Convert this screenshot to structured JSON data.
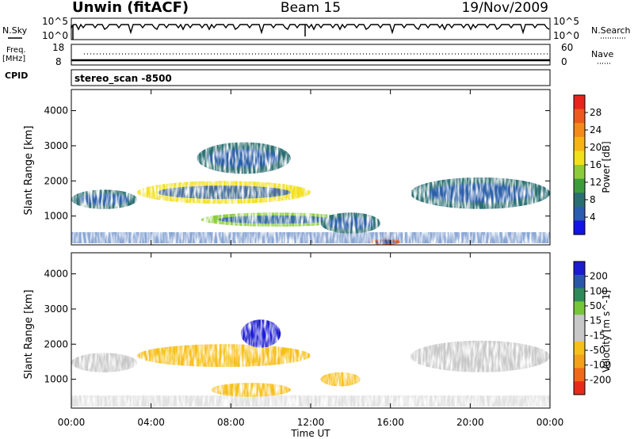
{
  "header": {
    "station": "Unwin (fitACF)",
    "beam": "Beam 15",
    "date": "19/Nov/2009"
  },
  "side_labels": {
    "nsky": "N.Sky",
    "freq_top": "Freq.",
    "freq_unit": "[MHz]",
    "cpid": "CPID",
    "nsearch": "N.Search",
    "nave": "Nave"
  },
  "cpid_value": "stereo_scan -8500",
  "noise_axis": {
    "ticks": [
      "10^5",
      "10^0"
    ]
  },
  "freq_axis": {
    "ticks_left": [
      "18",
      "8"
    ],
    "ticks_right": [
      "60",
      "0"
    ]
  },
  "x_axis": {
    "label": "Time UT",
    "ticks": [
      "00:00",
      "04:00",
      "08:00",
      "12:00",
      "16:00",
      "20:00",
      "00:00"
    ]
  },
  "power_panel": {
    "ylabel": "Slant Range [km]",
    "yticks": [
      "4000",
      "3000",
      "2000",
      "1000"
    ],
    "cbar_label": "Power [dB]",
    "cbar_ticks": [
      "28",
      "24",
      "20",
      "16",
      "12",
      "8",
      "4"
    ],
    "cbar_colors": [
      "#e8241d",
      "#ec5a1c",
      "#f28a1c",
      "#f6b416",
      "#f2e01a",
      "#8ccc3a",
      "#3c9c3c",
      "#2a6e72",
      "#2a5cb0",
      "#1414e6"
    ]
  },
  "velocity_panel": {
    "ylabel": "Slant Range [km]",
    "yticks": [
      "4000",
      "3000",
      "2000",
      "1000"
    ],
    "cbar_label": "Velocity [m s^-1]",
    "cbar_ticks": [
      "200",
      "100",
      "50",
      "15",
      "-15",
      "-50",
      "-100",
      "-200"
    ],
    "cbar_colors": [
      "#1c1cd0",
      "#2a58a8",
      "#2e8a5a",
      "#76c63a",
      "#c8c8c8",
      "#c8c8c8",
      "#f6c01a",
      "#f4a01a",
      "#f06a1a",
      "#e82a1a"
    ]
  },
  "chart_data": [
    {
      "type": "heatmap",
      "title": "Power [dB]",
      "xlabel": "Time UT",
      "ylabel": "Slant Range [km]",
      "xlim": [
        0,
        24
      ],
      "ylim": [
        180,
        4600
      ],
      "colorbar": {
        "label": "Power [dB]",
        "range": [
          0,
          30
        ]
      },
      "echo_regions": [
        {
          "t0": 0.0,
          "t1": 3.3,
          "r0": 1200,
          "r1": 1750,
          "value": 6
        },
        {
          "t0": 3.3,
          "t1": 12.0,
          "r0": 1350,
          "r1": 2000,
          "value": 16
        },
        {
          "t0": 6.3,
          "t1": 11.0,
          "r0": 2200,
          "r1": 3100,
          "value": 6
        },
        {
          "t0": 6.5,
          "t1": 14.0,
          "r0": 700,
          "r1": 1100,
          "value": 14
        },
        {
          "t0": 12.5,
          "t1": 15.5,
          "r0": 500,
          "r1": 1100,
          "value": 6
        },
        {
          "t0": 15.0,
          "t1": 16.5,
          "r0": 180,
          "r1": 350,
          "value": 28
        },
        {
          "t0": 17.0,
          "t1": 24.0,
          "r0": 1200,
          "r1": 2100,
          "value": 6
        }
      ]
    },
    {
      "type": "heatmap",
      "title": "Velocity [m s^-1]",
      "xlabel": "Time UT",
      "ylabel": "Slant Range [km]",
      "xlim": [
        0,
        24
      ],
      "ylim": [
        180,
        4600
      ],
      "colorbar": {
        "label": "Velocity [m s^-1]",
        "range": [
          -200,
          200
        ]
      },
      "echo_regions": [
        {
          "t0": 0.0,
          "t1": 3.3,
          "r0": 1200,
          "r1": 1750,
          "value": 0
        },
        {
          "t0": 3.3,
          "t1": 12.0,
          "r0": 1350,
          "r1": 2000,
          "value": -50
        },
        {
          "t0": 8.5,
          "t1": 10.5,
          "r0": 1900,
          "r1": 2700,
          "value": 200
        },
        {
          "t0": 7.0,
          "t1": 11.0,
          "r0": 500,
          "r1": 900,
          "value": -80
        },
        {
          "t0": 12.5,
          "t1": 14.5,
          "r0": 800,
          "r1": 1200,
          "value": -80
        },
        {
          "t0": 17.0,
          "t1": 24.0,
          "r0": 1200,
          "r1": 2100,
          "value": 0
        }
      ]
    }
  ]
}
